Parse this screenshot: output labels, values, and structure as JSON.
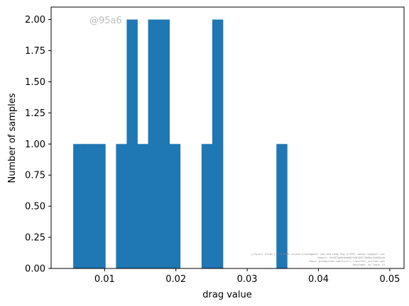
{
  "chart_data": {
    "type": "bar",
    "xlabel": "drag value",
    "ylabel": "Number of samples",
    "xlim": [
      0.0025,
      0.052
    ],
    "ylim": [
      0,
      2.1
    ],
    "x_ticks": [
      "0.01",
      "0.02",
      "0.03",
      "0.04",
      "0.05"
    ],
    "x_tick_values": [
      0.01,
      0.02,
      0.03,
      0.04,
      0.05
    ],
    "y_ticks": [
      "0.00",
      "0.25",
      "0.50",
      "0.75",
      "1.00",
      "1.25",
      "1.50",
      "1.75",
      "2.00"
    ],
    "y_tick_values": [
      0,
      0.25,
      0.5,
      0.75,
      1.0,
      1.25,
      1.5,
      1.75,
      2.0
    ],
    "bar_color": "#1f77b4",
    "grid": false,
    "bins": [
      {
        "x0": 0.0056,
        "x1": 0.0071,
        "count": 1
      },
      {
        "x0": 0.0071,
        "x1": 0.0086,
        "count": 1
      },
      {
        "x0": 0.0086,
        "x1": 0.0101,
        "count": 1
      },
      {
        "x0": 0.0116,
        "x1": 0.0131,
        "count": 1
      },
      {
        "x0": 0.0131,
        "x1": 0.0146,
        "count": 2
      },
      {
        "x0": 0.0146,
        "x1": 0.0161,
        "count": 1
      },
      {
        "x0": 0.0161,
        "x1": 0.0176,
        "count": 2
      },
      {
        "x0": 0.0176,
        "x1": 0.0191,
        "count": 2
      },
      {
        "x0": 0.0191,
        "x1": 0.0206,
        "count": 1
      },
      {
        "x0": 0.0236,
        "x1": 0.0251,
        "count": 1
      },
      {
        "x0": 0.0251,
        "x1": 0.0266,
        "count": 2
      },
      {
        "x0": 0.0341,
        "x1": 0.0356,
        "count": 1
      }
    ]
  },
  "watermark": "@95a6",
  "credit_lines": [
    "y Eyvill Olsen Lyo @ ETHZ chjeon.olsen@gmail.com and Deep Ray @ EPFL <deep.ray@epfl.ch>",
    "Commit: 65e875a6e0eb8025d8158774b0bc2ad58cad",
    "Repo: git@github.com:Eyvill-7/airfoil_surfnet.git",
    "Hostname: ex_login_15"
  ]
}
